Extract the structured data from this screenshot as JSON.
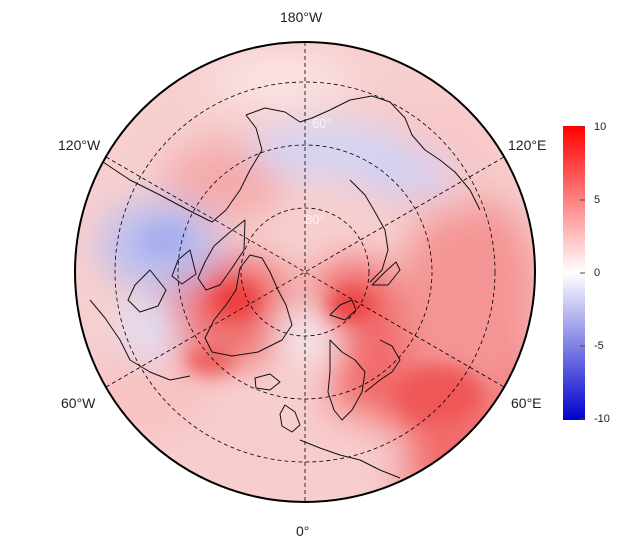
{
  "map": {
    "projection": "north-polar-stereographic",
    "longitude_labels": {
      "top": "180°W",
      "upper_left": "120°W",
      "upper_right": "120°E",
      "lower_left": "60°W",
      "lower_right": "60°E",
      "bottom": "0°"
    },
    "latitude_labels": [
      "60°",
      "80°"
    ],
    "graticule": {
      "style": "dashed",
      "meridian_step_deg": 60
    }
  },
  "colorbar": {
    "min": -10,
    "max": 10,
    "ticks": [
      "10",
      "5",
      "0",
      "-5",
      "-10"
    ],
    "colors": {
      "low": "#0000cc",
      "mid": "#ffffff",
      "high": "#ff0000"
    }
  }
}
